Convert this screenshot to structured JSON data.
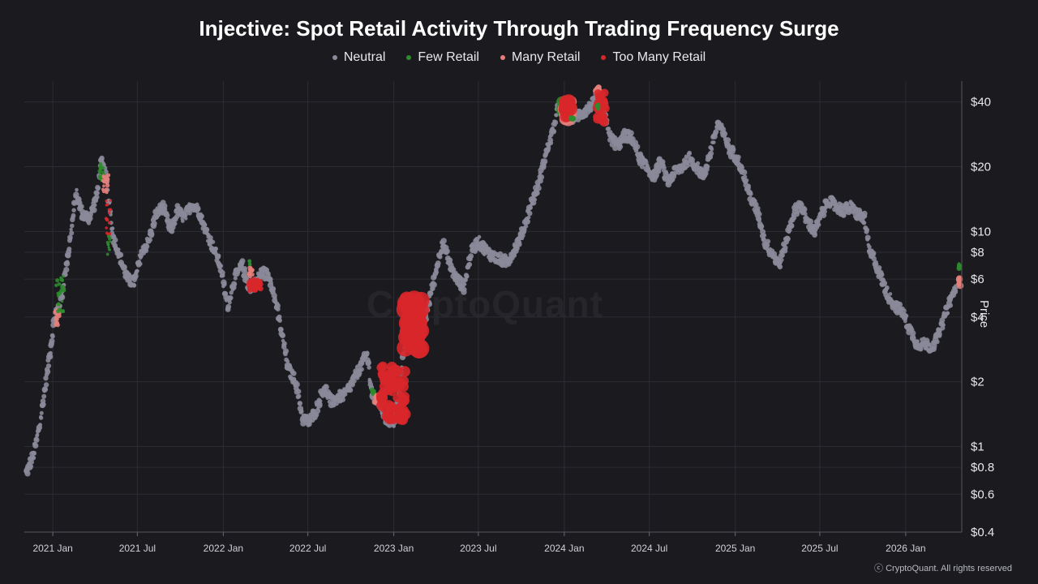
{
  "chart_data": {
    "type": "scatter",
    "title": "Injective: Spot Retail Activity Through Trading Frequency Surge",
    "ylabel": "Price",
    "yscale": "log",
    "ylim": [
      0.4,
      50
    ],
    "xlim": [
      "2020-11-01",
      "2026-05-01"
    ],
    "x_tick_labels": [
      {
        "date": "2021-01-01",
        "label": "2021 Jan"
      },
      {
        "date": "2021-07-01",
        "label": "2021 Jul"
      },
      {
        "date": "2022-01-01",
        "label": "2022 Jan"
      },
      {
        "date": "2022-07-01",
        "label": "2022 Jul"
      },
      {
        "date": "2023-01-01",
        "label": "2023 Jan"
      },
      {
        "date": "2023-07-01",
        "label": "2023 Jul"
      },
      {
        "date": "2024-01-01",
        "label": "2024 Jan"
      },
      {
        "date": "2024-07-01",
        "label": "2024 Jul"
      },
      {
        "date": "2025-01-01",
        "label": "2025 Jan"
      },
      {
        "date": "2025-07-01",
        "label": "2025 Jul"
      },
      {
        "date": "2026-01-01",
        "label": "2026 Jan"
      }
    ],
    "y_tick_labels": [
      {
        "value": 40,
        "label": "$40"
      },
      {
        "value": 20,
        "label": "$20"
      },
      {
        "value": 10,
        "label": "$10"
      },
      {
        "value": 8,
        "label": "$8"
      },
      {
        "value": 6,
        "label": "$6"
      },
      {
        "value": 4,
        "label": "$4"
      },
      {
        "value": 2,
        "label": "$2"
      },
      {
        "value": 1,
        "label": "$1"
      },
      {
        "value": 0.8,
        "label": "$0.8"
      },
      {
        "value": 0.6,
        "label": "$0.6"
      },
      {
        "value": 0.4,
        "label": "$0.4"
      }
    ],
    "grid": true,
    "legend_position": "top-center",
    "legend": [
      {
        "name": "Neutral",
        "color": "#8a8a99"
      },
      {
        "name": "Few Retail",
        "color": "#2e8b2e"
      },
      {
        "name": "Many Retail",
        "color": "#e57f7a"
      },
      {
        "name": "Too Many Retail",
        "color": "#d8272a"
      }
    ],
    "price_path": [
      [
        "2020-11-05",
        0.75
      ],
      [
        "2020-11-20",
        0.9
      ],
      [
        "2020-12-05",
        1.3
      ],
      [
        "2020-12-20",
        2.2
      ],
      [
        "2021-01-05",
        4.0
      ],
      [
        "2021-01-20",
        5.0
      ],
      [
        "2021-02-05",
        8.5
      ],
      [
        "2021-02-20",
        15.0
      ],
      [
        "2021-03-05",
        12.0
      ],
      [
        "2021-03-20",
        11.5
      ],
      [
        "2021-04-05",
        14.5
      ],
      [
        "2021-04-15",
        21.0
      ],
      [
        "2021-04-25",
        18.0
      ],
      [
        "2021-05-10",
        9.5
      ],
      [
        "2021-05-25",
        7.5
      ],
      [
        "2021-06-10",
        6.0
      ],
      [
        "2021-06-25",
        5.8
      ],
      [
        "2021-07-10",
        8.0
      ],
      [
        "2021-07-25",
        9.0
      ],
      [
        "2021-08-10",
        12.0
      ],
      [
        "2021-08-25",
        13.0
      ],
      [
        "2021-09-10",
        10.0
      ],
      [
        "2021-09-25",
        12.5
      ],
      [
        "2021-10-10",
        11.5
      ],
      [
        "2021-10-25",
        13.5
      ],
      [
        "2021-11-10",
        12.5
      ],
      [
        "2021-11-25",
        10.0
      ],
      [
        "2021-12-10",
        8.5
      ],
      [
        "2021-12-25",
        7.0
      ],
      [
        "2022-01-10",
        4.5
      ],
      [
        "2022-01-25",
        6.0
      ],
      [
        "2022-02-10",
        7.0
      ],
      [
        "2022-02-25",
        5.5
      ],
      [
        "2022-03-10",
        5.7
      ],
      [
        "2022-03-25",
        6.5
      ],
      [
        "2022-04-10",
        6.2
      ],
      [
        "2022-04-25",
        4.5
      ],
      [
        "2022-05-10",
        3.0
      ],
      [
        "2022-05-20",
        2.3
      ],
      [
        "2022-06-05",
        2.0
      ],
      [
        "2022-06-20",
        1.35
      ],
      [
        "2022-07-05",
        1.3
      ],
      [
        "2022-07-20",
        1.5
      ],
      [
        "2022-08-05",
        1.9
      ],
      [
        "2022-08-20",
        1.6
      ],
      [
        "2022-09-05",
        1.7
      ],
      [
        "2022-09-20",
        1.75
      ],
      [
        "2022-10-05",
        2.0
      ],
      [
        "2022-10-20",
        2.3
      ],
      [
        "2022-11-05",
        2.7
      ],
      [
        "2022-11-15",
        1.75
      ],
      [
        "2022-12-01",
        1.6
      ],
      [
        "2022-12-15",
        1.35
      ],
      [
        "2023-01-01",
        1.3
      ],
      [
        "2023-01-10",
        1.6
      ],
      [
        "2023-01-20",
        2.5
      ],
      [
        "2023-02-01",
        4.0
      ],
      [
        "2023-02-15",
        3.5
      ],
      [
        "2023-03-01",
        3.0
      ],
      [
        "2023-03-15",
        4.5
      ],
      [
        "2023-04-01",
        6.5
      ],
      [
        "2023-04-15",
        9.0
      ],
      [
        "2023-05-01",
        7.0
      ],
      [
        "2023-05-15",
        6.0
      ],
      [
        "2023-06-01",
        5.5
      ],
      [
        "2023-06-15",
        8.0
      ],
      [
        "2023-07-01",
        9.0
      ],
      [
        "2023-07-20",
        8.0
      ],
      [
        "2023-08-10",
        7.5
      ],
      [
        "2023-09-01",
        7.2
      ],
      [
        "2023-09-20",
        8.5
      ],
      [
        "2023-10-05",
        10.0
      ],
      [
        "2023-10-20",
        13.0
      ],
      [
        "2023-11-05",
        16.0
      ],
      [
        "2023-11-20",
        22.0
      ],
      [
        "2023-12-05",
        28.0
      ],
      [
        "2023-12-20",
        38.0
      ],
      [
        "2024-01-05",
        37.0
      ],
      [
        "2024-01-20",
        34.0
      ],
      [
        "2024-02-05",
        35.0
      ],
      [
        "2024-02-20",
        37.0
      ],
      [
        "2024-03-05",
        40.0
      ],
      [
        "2024-03-15",
        45.0
      ],
      [
        "2024-03-25",
        36.0
      ],
      [
        "2024-04-10",
        27.0
      ],
      [
        "2024-04-25",
        25.0
      ],
      [
        "2024-05-10",
        28.0
      ],
      [
        "2024-05-25",
        27.0
      ],
      [
        "2024-06-10",
        22.0
      ],
      [
        "2024-06-25",
        20.0
      ],
      [
        "2024-07-10",
        18.0
      ],
      [
        "2024-07-25",
        21.0
      ],
      [
        "2024-08-10",
        17.0
      ],
      [
        "2024-08-25",
        19.0
      ],
      [
        "2024-09-10",
        20.0
      ],
      [
        "2024-09-25",
        22.0
      ],
      [
        "2024-10-10",
        20.0
      ],
      [
        "2024-10-25",
        18.0
      ],
      [
        "2024-11-10",
        24.0
      ],
      [
        "2024-11-25",
        32.0
      ],
      [
        "2024-12-05",
        29.0
      ],
      [
        "2024-12-20",
        24.0
      ],
      [
        "2025-01-05",
        22.0
      ],
      [
        "2025-01-20",
        18.0
      ],
      [
        "2025-02-05",
        14.0
      ],
      [
        "2025-02-20",
        12.0
      ],
      [
        "2025-03-05",
        9.0
      ],
      [
        "2025-03-20",
        8.0
      ],
      [
        "2025-04-05",
        7.0
      ],
      [
        "2025-04-20",
        9.0
      ],
      [
        "2025-05-05",
        12.0
      ],
      [
        "2025-05-20",
        13.5
      ],
      [
        "2025-06-05",
        11.0
      ],
      [
        "2025-06-20",
        10.0
      ],
      [
        "2025-07-05",
        12.0
      ],
      [
        "2025-07-20",
        14.0
      ],
      [
        "2025-08-05",
        13.0
      ],
      [
        "2025-08-20",
        12.5
      ],
      [
        "2025-09-05",
        13.0
      ],
      [
        "2025-09-20",
        12.0
      ],
      [
        "2025-10-05",
        11.5
      ],
      [
        "2025-10-15",
        8.0
      ],
      [
        "2025-10-25",
        7.5
      ],
      [
        "2025-11-10",
        6.0
      ],
      [
        "2025-11-25",
        5.0
      ],
      [
        "2025-12-10",
        4.5
      ],
      [
        "2025-12-25",
        4.2
      ],
      [
        "2026-01-10",
        3.5
      ],
      [
        "2026-01-25",
        3.0
      ],
      [
        "2026-02-10",
        3.0
      ],
      [
        "2026-02-25",
        2.9
      ],
      [
        "2026-03-10",
        3.2
      ],
      [
        "2026-03-25",
        4.0
      ],
      [
        "2026-04-10",
        5.0
      ],
      [
        "2026-04-20",
        5.6
      ]
    ],
    "highlights": [
      {
        "category": "Many Retail",
        "start": "2021-01-05",
        "end": "2021-01-15",
        "low": 3.6,
        "high": 4.6,
        "size": 2.5
      },
      {
        "category": "Few Retail",
        "start": "2021-01-08",
        "end": "2021-01-25",
        "low": 4.2,
        "high": 6.4,
        "size": 2.2
      },
      {
        "category": "Few Retail",
        "start": "2021-04-10",
        "end": "2021-04-20",
        "low": 17.0,
        "high": 21.0,
        "size": 2.3
      },
      {
        "category": "Many Retail",
        "start": "2021-04-18",
        "end": "2021-04-30",
        "low": 15.0,
        "high": 18.5,
        "size": 2.3
      },
      {
        "category": "Too Many Retail",
        "start": "2021-04-25",
        "end": "2021-05-05",
        "low": 9.5,
        "high": 14.0,
        "size": 2.0
      },
      {
        "category": "Few Retail",
        "start": "2021-04-28",
        "end": "2021-05-05",
        "low": 7.8,
        "high": 9.6,
        "size": 2.0
      },
      {
        "category": "Too Many Retail",
        "start": "2022-02-25",
        "end": "2022-03-25",
        "low": 5.3,
        "high": 6.0,
        "size": 3.0
      },
      {
        "category": "Many Retail",
        "start": "2022-02-25",
        "end": "2022-03-05",
        "low": 6.1,
        "high": 6.8,
        "size": 2.5
      },
      {
        "category": "Few Retail",
        "start": "2022-02-25",
        "end": "2022-03-01",
        "low": 7.0,
        "high": 7.3,
        "size": 2.2
      },
      {
        "category": "Few Retail",
        "start": "2022-11-15",
        "end": "2022-11-20",
        "low": 1.75,
        "high": 1.85,
        "size": 2.8
      },
      {
        "category": "Many Retail",
        "start": "2022-11-20",
        "end": "2022-12-05",
        "low": 1.6,
        "high": 1.75,
        "size": 3.0
      },
      {
        "category": "Too Many Retail",
        "start": "2022-12-05",
        "end": "2023-01-25",
        "low": 1.3,
        "high": 2.4,
        "size": 6.0
      },
      {
        "category": "Too Many Retail",
        "start": "2023-01-25",
        "end": "2023-03-01",
        "low": 2.8,
        "high": 4.9,
        "size": 10.0
      },
      {
        "category": "Few Retail",
        "start": "2023-12-25",
        "end": "2024-01-05",
        "low": 35.0,
        "high": 42.0,
        "size": 6.0
      },
      {
        "category": "Many Retail",
        "start": "2024-01-01",
        "end": "2024-01-15",
        "low": 33.0,
        "high": 41.0,
        "size": 7.0
      },
      {
        "category": "Too Many Retail",
        "start": "2024-01-01",
        "end": "2024-01-15",
        "low": 34.0,
        "high": 41.0,
        "size": 8.0
      },
      {
        "category": "Few Retail",
        "start": "2024-01-15",
        "end": "2024-01-20",
        "low": 33.0,
        "high": 34.0,
        "size": 3.0
      },
      {
        "category": "Many Retail",
        "start": "2024-03-10",
        "end": "2024-03-15",
        "low": 44.0,
        "high": 47.0,
        "size": 4.0
      },
      {
        "category": "Too Many Retail",
        "start": "2024-03-10",
        "end": "2024-03-30",
        "low": 32.0,
        "high": 45.0,
        "size": 5.0
      },
      {
        "category": "Few Retail",
        "start": "2024-03-10",
        "end": "2024-03-15",
        "low": 37.0,
        "high": 39.0,
        "size": 2.5
      },
      {
        "category": "Few Retail",
        "start": "2026-04-25",
        "end": "2026-04-28",
        "low": 6.7,
        "high": 7.2,
        "size": 3.0
      },
      {
        "category": "Many Retail",
        "start": "2026-04-25",
        "end": "2026-04-28",
        "low": 5.5,
        "high": 6.4,
        "size": 3.5
      }
    ]
  },
  "watermark": "CryptoQuant",
  "copyright": "ⓒ CryptoQuant. All rights reserved"
}
